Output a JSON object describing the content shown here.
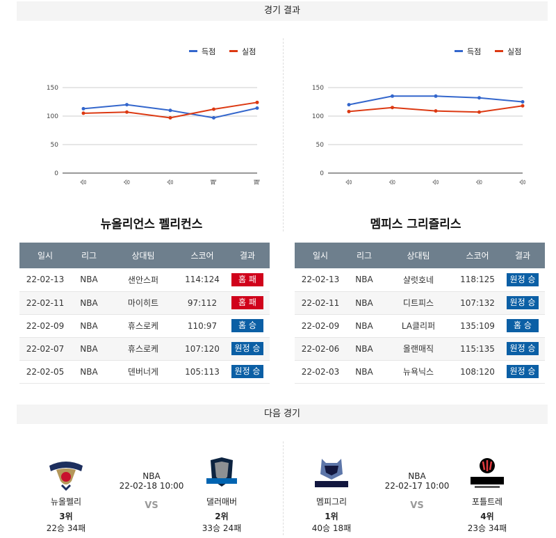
{
  "headers": {
    "results": "경기 결과",
    "next": "다음 경기"
  },
  "legend": {
    "scored": "득점",
    "allowed": "실점"
  },
  "colors": {
    "scored": "#3366cc",
    "allowed": "#dc3912",
    "win": "#0b5fa5",
    "loss": "#d0021b",
    "th": "#6e7f8d"
  },
  "chart_data": [
    {
      "type": "line",
      "categories": [
        "승",
        "승",
        "승",
        "패",
        "패"
      ],
      "series": [
        {
          "name": "득점",
          "values": [
            113,
            120,
            110,
            97,
            114
          ]
        },
        {
          "name": "실점",
          "values": [
            105,
            107,
            97,
            112,
            124
          ]
        }
      ],
      "ylim": [
        0,
        150
      ],
      "yticks": [
        "0",
        "50",
        "100",
        "150"
      ],
      "grid": true,
      "legend_position": "top-right"
    },
    {
      "type": "line",
      "categories": [
        "승",
        "승",
        "승",
        "승",
        "승"
      ],
      "series": [
        {
          "name": "득점",
          "values": [
            120,
            135,
            135,
            132,
            125
          ]
        },
        {
          "name": "실점",
          "values": [
            108,
            115,
            109,
            107,
            118
          ]
        }
      ],
      "ylim": [
        0,
        150
      ],
      "yticks": [
        "0",
        "50",
        "100",
        "150"
      ],
      "grid": true,
      "legend_position": "top-right"
    }
  ],
  "columns": [
    "일시",
    "리그",
    "상대팀",
    "스코어",
    "결과"
  ],
  "teams": [
    {
      "title": "뉴올리언스 펠리컨스",
      "games": [
        {
          "date": "22-02-13",
          "league": "NBA",
          "opponent": "샌안스퍼",
          "score": "114:124",
          "result": "홈 패",
          "win": false
        },
        {
          "date": "22-02-11",
          "league": "NBA",
          "opponent": "마이히트",
          "score": "97:112",
          "result": "홈 패",
          "win": false
        },
        {
          "date": "22-02-09",
          "league": "NBA",
          "opponent": "휴스로케",
          "score": "110:97",
          "result": "홈 승",
          "win": true
        },
        {
          "date": "22-02-07",
          "league": "NBA",
          "opponent": "휴스로케",
          "score": "107:120",
          "result": "원정 승",
          "win": true
        },
        {
          "date": "22-02-05",
          "league": "NBA",
          "opponent": "덴버너게",
          "score": "105:113",
          "result": "원정 승",
          "win": true
        }
      ]
    },
    {
      "title": "멤피스 그리즐리스",
      "games": [
        {
          "date": "22-02-13",
          "league": "NBA",
          "opponent": "샬럿호네",
          "score": "118:125",
          "result": "원정 승",
          "win": true
        },
        {
          "date": "22-02-11",
          "league": "NBA",
          "opponent": "디트피스",
          "score": "107:132",
          "result": "원정 승",
          "win": true
        },
        {
          "date": "22-02-09",
          "league": "NBA",
          "opponent": "LA클리퍼",
          "score": "135:109",
          "result": "홈 승",
          "win": true
        },
        {
          "date": "22-02-06",
          "league": "NBA",
          "opponent": "올랜매직",
          "score": "115:135",
          "result": "원정 승",
          "win": true
        },
        {
          "date": "22-02-03",
          "league": "NBA",
          "opponent": "뉴욕닉스",
          "score": "108:120",
          "result": "원정 승",
          "win": true
        }
      ]
    }
  ],
  "next_games": [
    {
      "league": "NBA",
      "datetime": "22-02-18 10:00",
      "vs": "VS",
      "home": {
        "name": "뉴올펠리",
        "rank": "3위",
        "record": "22승 34패"
      },
      "away": {
        "name": "댈러매버",
        "rank": "2위",
        "record": "33승 24패"
      }
    },
    {
      "league": "NBA",
      "datetime": "22-02-17 10:00",
      "vs": "VS",
      "home": {
        "name": "멤피그리",
        "rank": "1위",
        "record": "40승 18패"
      },
      "away": {
        "name": "포틀트레",
        "rank": "4위",
        "record": "23승 34패"
      }
    }
  ]
}
